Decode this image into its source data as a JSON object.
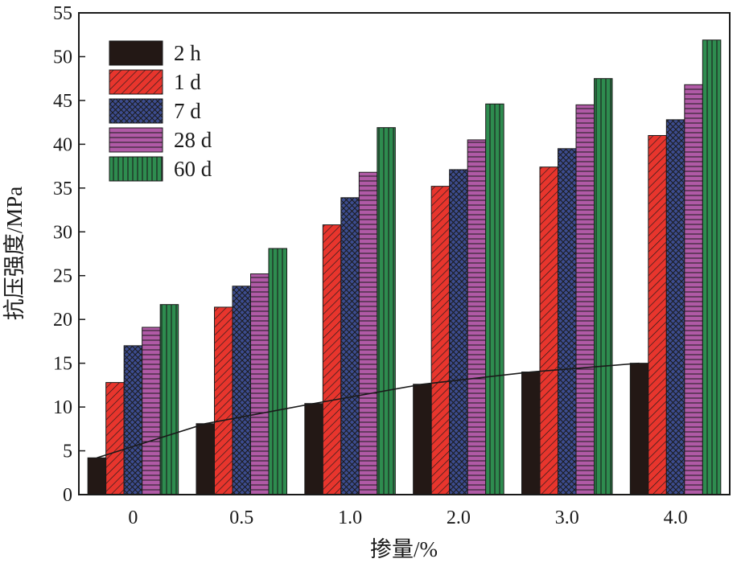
{
  "chart_data": {
    "type": "bar",
    "xlabel": "掺量/%",
    "ylabel": "抗压强度/MPa",
    "categories": [
      "0",
      "0.5",
      "1.0",
      "2.0",
      "3.0",
      "4.0"
    ],
    "ylim": [
      0,
      55
    ],
    "yticks": [
      "0",
      "5",
      "10",
      "15",
      "20",
      "25",
      "30",
      "35",
      "40",
      "45",
      "50",
      "55"
    ],
    "legend_position": "top-left",
    "grid": false,
    "series": [
      {
        "name": "2 h",
        "color": "#231815",
        "pattern": "solid",
        "values": [
          4.2,
          8.1,
          10.4,
          12.6,
          14.0,
          15.0
        ]
      },
      {
        "name": "1 d",
        "color": "#e8352d",
        "pattern": "diagonal",
        "values": [
          12.8,
          21.4,
          30.8,
          35.2,
          37.4,
          41.0
        ]
      },
      {
        "name": "7 d",
        "color": "#3c4c8f",
        "pattern": "crosshatch",
        "values": [
          17.0,
          23.8,
          33.9,
          37.1,
          39.5,
          42.8
        ]
      },
      {
        "name": "28 d",
        "color": "#b05aa6",
        "pattern": "horizontal",
        "values": [
          19.1,
          25.2,
          36.8,
          40.5,
          44.5,
          46.8
        ]
      },
      {
        "name": "60 d",
        "color": "#2e8c4f",
        "pattern": "vertical",
        "values": [
          21.7,
          28.1,
          41.9,
          44.6,
          47.5,
          51.9
        ]
      }
    ],
    "trend_line": {
      "series": "2 h",
      "values": [
        4.2,
        8.1,
        10.4,
        12.6,
        14.0,
        15.0
      ]
    }
  }
}
